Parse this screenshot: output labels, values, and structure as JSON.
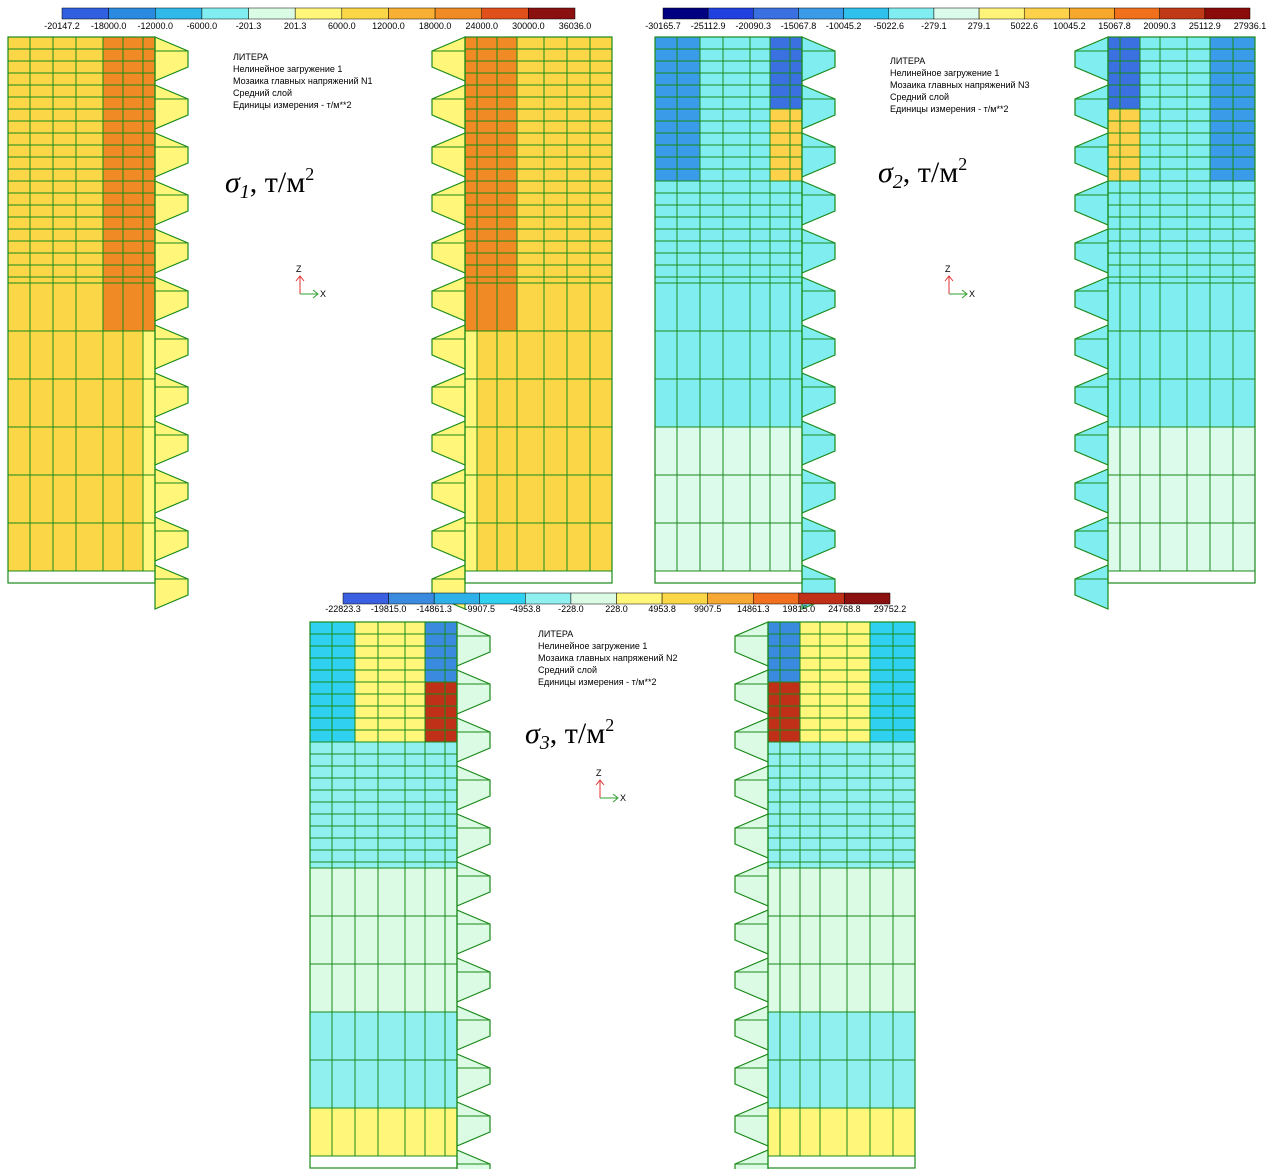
{
  "panels": [
    {
      "legend": {
        "colors": [
          "#3060e0",
          "#2a8ae0",
          "#30b8e8",
          "#80eef0",
          "#dafbe4",
          "#fff67a",
          "#fbd748",
          "#f7b034",
          "#f08a24",
          "#e0501a",
          "#8b1010"
        ],
        "labels": [
          "-20147.2",
          "-18000.0",
          "-12000.0",
          "-6000.0",
          "-201.3",
          "201.3",
          "6000.0",
          "12000.0",
          "18000.0",
          "24000.0",
          "30000.0",
          "36036.0"
        ]
      },
      "info": [
        "ЛИТЕРА",
        "Нелинейное загружение  1",
        "Мозаика главных напряжений N1",
        "Средний слой",
        "Единицы измерения - т/м**2"
      ],
      "stress": {
        "symbol": "σ",
        "index": "1",
        "unit": ", т/м",
        "power": "2"
      },
      "axes": {
        "z": "Z",
        "x": "X"
      }
    },
    {
      "legend": {
        "colors": [
          "#000080",
          "#2040e0",
          "#3a70e0",
          "#3a9be8",
          "#30c0ec",
          "#80eef0",
          "#dcfbea",
          "#fff47a",
          "#fdd24a",
          "#f7a82c",
          "#f0701c",
          "#c03a18",
          "#8b0a0a"
        ],
        "labels": [
          "-30165.7",
          "-25112.9",
          "-20090.3",
          "-15067.8",
          "-10045.2",
          "-5022.6",
          "-279.1",
          "279.1",
          "5022.6",
          "10045.2",
          "15067.8",
          "20090.3",
          "25112.9",
          "27936.1"
        ]
      },
      "info": [
        "ЛИТЕРА",
        "Нелинейное загружение  1",
        "Мозаика главных напряжений N3",
        "Средний слой",
        "Единицы измерения - т/м**2"
      ],
      "stress": {
        "symbol": "σ",
        "index": "2",
        "unit": ", т/м",
        "power": "2"
      },
      "axes": {
        "z": "Z",
        "x": "X"
      }
    },
    {
      "legend": {
        "colors": [
          "#3a5fe0",
          "#3a8ae0",
          "#30b0e8",
          "#30d0f0",
          "#90f0f0",
          "#dcfbe4",
          "#fff67a",
          "#fbd748",
          "#f7a834",
          "#f07020",
          "#c03018",
          "#8b1010"
        ],
        "labels": [
          "-22823.3",
          "-19815.0",
          "-14861.3",
          "-9907.5",
          "-4953.8",
          "-228.0",
          "228.0",
          "4953.8",
          "9907.5",
          "14861.3",
          "19815.0",
          "24768.8",
          "29752.2"
        ]
      },
      "info": [
        "ЛИТЕРА",
        "Нелинейное загружение  1",
        "Мозаика главных напряжений N2",
        "Средний слой",
        "Единицы измерения - т/м**2"
      ],
      "stress": {
        "symbol": "σ",
        "index": "3",
        "unit": ", т/м",
        "power": "2"
      },
      "axes": {
        "z": "Z",
        "x": "X"
      }
    }
  ]
}
